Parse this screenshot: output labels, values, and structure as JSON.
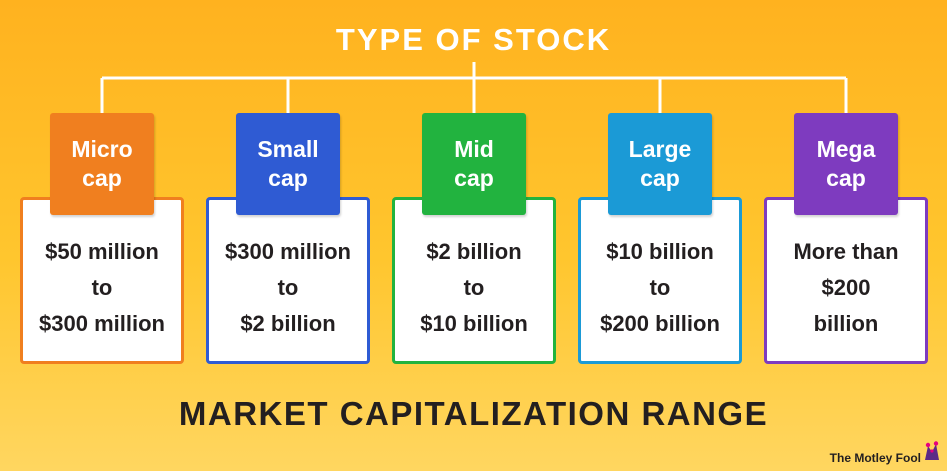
{
  "title": "TYPE OF STOCK",
  "footer_title": "MARKET CAPITALIZATION RANGE",
  "brand": "The Motley Fool",
  "colors": {
    "background": "#ffbe2a",
    "connector": "#ffffff",
    "text_dark": "#231f20"
  },
  "categories": [
    {
      "label_lines": [
        "Micro",
        "cap"
      ],
      "range_lines": [
        "$50 million",
        "to",
        "$300 million"
      ],
      "color": "#f07f1f"
    },
    {
      "label_lines": [
        "Small",
        "cap"
      ],
      "range_lines": [
        "$300 million",
        "to",
        "$2 billion"
      ],
      "color": "#2f5bd3"
    },
    {
      "label_lines": [
        "Mid",
        "cap"
      ],
      "range_lines": [
        "$2 billion",
        "to",
        "$10 billion"
      ],
      "color": "#22b33f"
    },
    {
      "label_lines": [
        "Large",
        "cap"
      ],
      "range_lines": [
        "$10 billion",
        "to",
        "$200 billion"
      ],
      "color": "#1b9ad6"
    },
    {
      "label_lines": [
        "Mega",
        "cap"
      ],
      "range_lines": [
        "More than",
        "$200",
        "billion"
      ],
      "color": "#7e3bbf"
    }
  ]
}
